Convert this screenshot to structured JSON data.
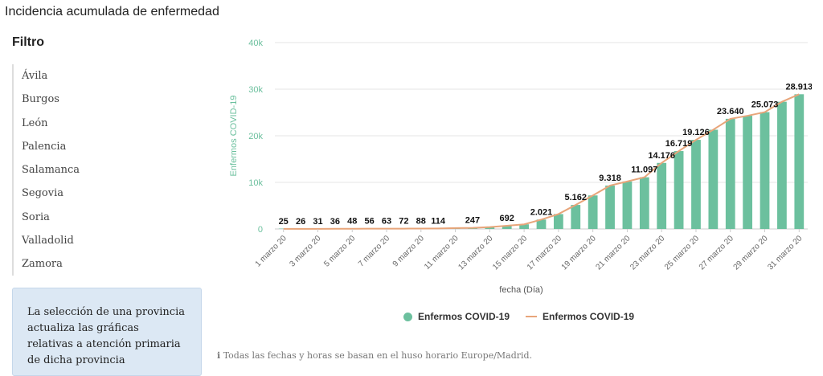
{
  "page_title": "Incidencia acumulada de enfermedad",
  "filter": {
    "title": "Filtro",
    "provinces": [
      "Ávila",
      "Burgos",
      "León",
      "Palencia",
      "Salamanca",
      "Segovia",
      "Soria",
      "Valladolid",
      "Zamora"
    ]
  },
  "info_box": {
    "text": "La selección de una provincia actualiza las gráficas relativas a atención primaria de dicha provincia"
  },
  "footnote": {
    "icon": "info-icon",
    "text": "Todas las fechas y horas se basan en el huso horario Europe/Madrid."
  },
  "colors": {
    "bar": "#6cc09e",
    "line": "#e8a57a",
    "axis_label": "#6cc09e",
    "grid": "#e6e6e6"
  },
  "legend": {
    "bar_label": "Enfermos COVID-19",
    "line_label": "Enfermos COVID-19"
  },
  "chart_data": {
    "type": "bar",
    "xlabel": "fecha (Día)",
    "ylabel": "Enfermos COVID-19",
    "ylim": [
      0,
      40000
    ],
    "yticks": [
      0,
      10000,
      20000,
      30000,
      40000
    ],
    "ytick_labels": [
      "0",
      "10k",
      "20k",
      "30k",
      "40k"
    ],
    "grid": true,
    "legend_position": "bottom",
    "categories": [
      "1 marzo 20",
      "2 marzo 20",
      "3 marzo 20",
      "4 marzo 20",
      "5 marzo 20",
      "6 marzo 20",
      "7 marzo 20",
      "8 marzo 20",
      "9 marzo 20",
      "10 marzo 20",
      "11 marzo 20",
      "12 marzo 20",
      "13 marzo 20",
      "14 marzo 20",
      "15 marzo 20",
      "16 marzo 20",
      "17 marzo 20",
      "18 marzo 20",
      "19 marzo 20",
      "20 marzo 20",
      "21 marzo 20",
      "22 marzo 20",
      "23 marzo 20",
      "24 marzo 20",
      "25 marzo 20",
      "26 marzo 20",
      "27 marzo 20",
      "28 marzo 20",
      "29 marzo 20",
      "30 marzo 20",
      "31 marzo 20"
    ],
    "shown_tick_labels": [
      "1 marzo 20",
      "3 marzo 20",
      "5 marzo 20",
      "7 marzo 20",
      "9 marzo 20",
      "11 marzo 20",
      "13 marzo 20",
      "15 marzo 20",
      "17 marzo 20",
      "19 marzo 20",
      "21 marzo 20",
      "23 marzo 20",
      "25 marzo 20",
      "27 marzo 20",
      "29 marzo 20",
      "31 marzo 20"
    ],
    "series": [
      {
        "name": "Enfermos COVID-19",
        "kind": "bar",
        "values": [
          25,
          26,
          31,
          36,
          48,
          56,
          63,
          72,
          88,
          114,
          200,
          247,
          400,
          692,
          1000,
          2021,
          3200,
          5162,
          7200,
          9318,
          10200,
          11097,
          14176,
          16719,
          19126,
          21300,
          23640,
          24300,
          25073,
          27300,
          28913
        ]
      },
      {
        "name": "Enfermos COVID-19",
        "kind": "line",
        "values": [
          25,
          26,
          31,
          36,
          48,
          56,
          63,
          72,
          88,
          114,
          200,
          247,
          400,
          692,
          1000,
          2021,
          3200,
          5162,
          7200,
          9318,
          10200,
          11097,
          14176,
          16719,
          19126,
          21300,
          23640,
          24300,
          25073,
          27300,
          28913
        ]
      }
    ],
    "data_labels": [
      {
        "index": 0,
        "text": "25"
      },
      {
        "index": 1,
        "text": "26"
      },
      {
        "index": 2,
        "text": "31"
      },
      {
        "index": 3,
        "text": "36"
      },
      {
        "index": 4,
        "text": "48"
      },
      {
        "index": 5,
        "text": "56"
      },
      {
        "index": 6,
        "text": "63"
      },
      {
        "index": 7,
        "text": "72"
      },
      {
        "index": 8,
        "text": "88"
      },
      {
        "index": 9,
        "text": "114"
      },
      {
        "index": 11,
        "text": "247"
      },
      {
        "index": 13,
        "text": "692"
      },
      {
        "index": 15,
        "text": "2.021"
      },
      {
        "index": 17,
        "text": "5.162"
      },
      {
        "index": 19,
        "text": "9.318"
      },
      {
        "index": 21,
        "text": "11.097"
      },
      {
        "index": 22,
        "text": "14.176"
      },
      {
        "index": 23,
        "text": "16.719"
      },
      {
        "index": 24,
        "text": "19.126"
      },
      {
        "index": 26,
        "text": "23.640"
      },
      {
        "index": 28,
        "text": "25.073"
      },
      {
        "index": 30,
        "text": "28.913"
      }
    ]
  }
}
